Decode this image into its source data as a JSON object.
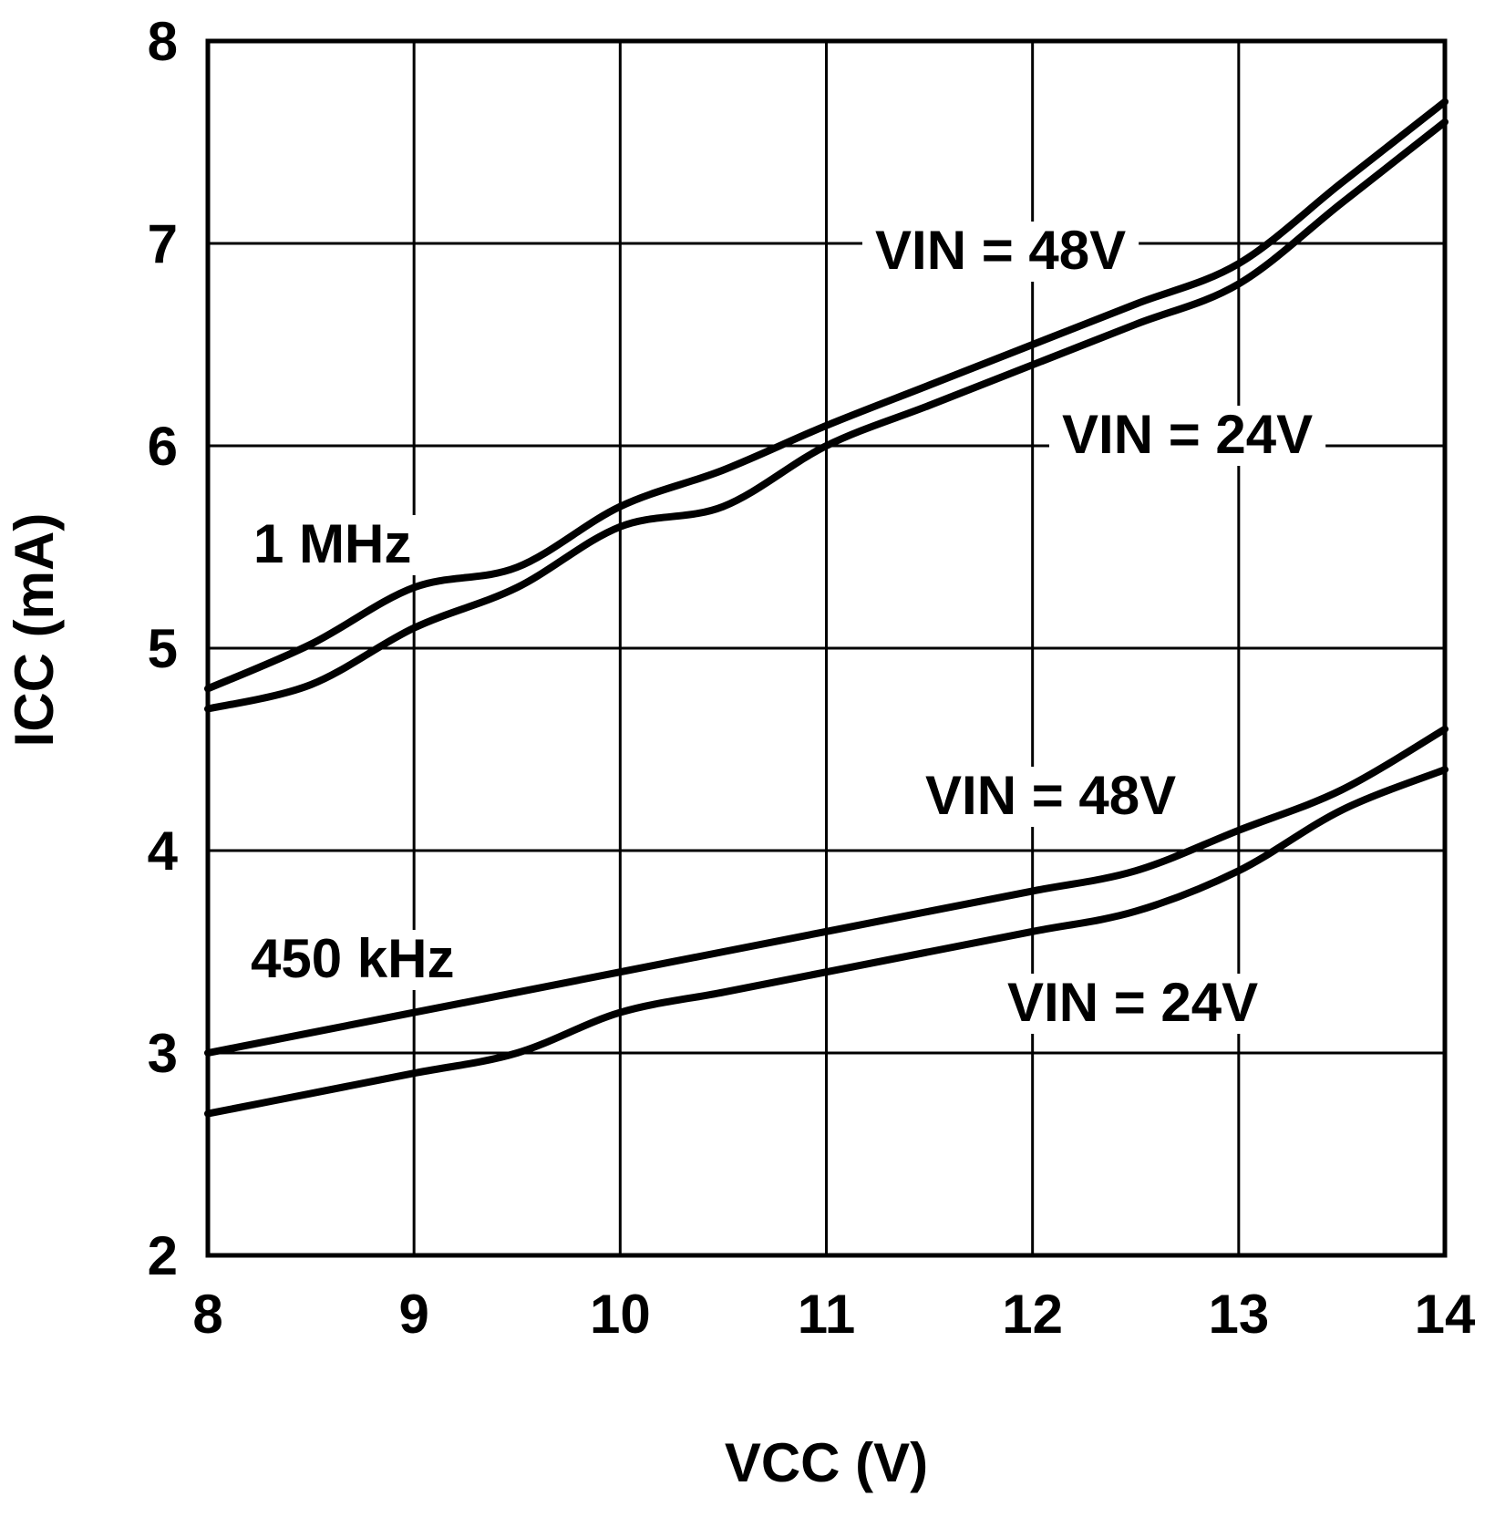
{
  "chart_data": {
    "type": "line",
    "title": "",
    "xlabel": "VCC (V)",
    "ylabel": "ICC (mA)",
    "xlim": [
      8,
      14
    ],
    "ylim": [
      2,
      8
    ],
    "xticks": [
      8,
      9,
      10,
      11,
      12,
      13,
      14
    ],
    "yticks": [
      2,
      3,
      4,
      5,
      6,
      7,
      8
    ],
    "grid": true,
    "x": [
      8,
      8.5,
      9,
      9.5,
      10,
      10.5,
      11,
      11.5,
      12,
      12.5,
      13,
      13.5,
      14
    ],
    "series": [
      {
        "name": "1 MHz, VIN = 48V",
        "values": [
          4.8,
          5.02,
          5.3,
          5.4,
          5.7,
          5.88,
          6.1,
          6.3,
          6.5,
          6.7,
          6.9,
          7.3,
          7.7
        ]
      },
      {
        "name": "1 MHz, VIN = 24V",
        "values": [
          4.7,
          4.82,
          5.1,
          5.3,
          5.6,
          5.7,
          6.0,
          6.2,
          6.4,
          6.6,
          6.8,
          7.2,
          7.6
        ]
      },
      {
        "name": "450 kHz, VIN = 48V",
        "values": [
          3.0,
          3.1,
          3.2,
          3.3,
          3.4,
          3.5,
          3.6,
          3.7,
          3.8,
          3.9,
          4.1,
          4.3,
          4.6
        ]
      },
      {
        "name": "450 kHz, VIN = 24V",
        "values": [
          2.7,
          2.8,
          2.9,
          3.0,
          3.2,
          3.3,
          3.4,
          3.5,
          3.6,
          3.7,
          3.9,
          4.2,
          4.4
        ]
      }
    ],
    "annotations": {
      "group_1mhz": "1 MHz",
      "group_450khz": "450 kHz",
      "vin48_top": "VIN = 48V",
      "vin24_top": "VIN = 24V",
      "vin48_bottom": "VIN = 48V",
      "vin24_bottom": "VIN = 24V"
    },
    "line_color": "#000000",
    "background": "#ffffff"
  }
}
